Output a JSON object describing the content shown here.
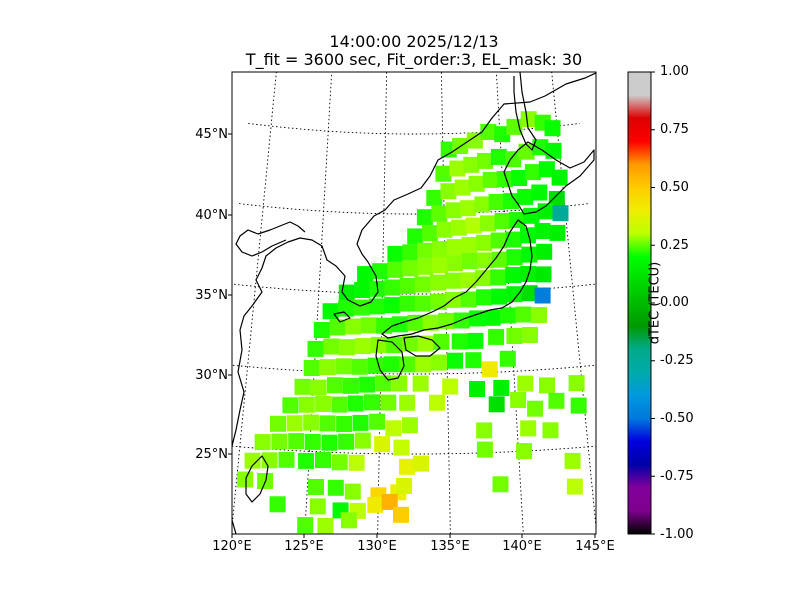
{
  "title_line1": "14:00:00 2025/12/13",
  "title_line2": "T_fit = 3600 sec, Fit_order:3, EL_mask: 30",
  "colorbar": {
    "label": "dTEC (TECU)",
    "ticks": [
      "-1.00",
      "-0.75",
      "-0.50",
      "-0.25",
      "0.00",
      "0.25",
      "0.50",
      "0.75",
      "1.00"
    ],
    "range": [
      -1.0,
      1.0
    ],
    "colormap": "nipy_spectral"
  },
  "chart_data": {
    "type": "heatmap",
    "title": "14:00:00 2025/12/13 / T_fit = 3600 sec, Fit_order:3, EL_mask: 30",
    "x_ticks": [
      "120°E",
      "125°E",
      "130°E",
      "135°E",
      "140°E",
      "145°E"
    ],
    "y_ticks": [
      "25°N",
      "30°N",
      "35°N",
      "40°N",
      "45°N"
    ],
    "xlim": [
      120,
      145
    ],
    "ylim": [
      20,
      49
    ],
    "projection": "conic",
    "grid": true,
    "value_label": "dTEC (TECU)",
    "value_range": [
      -1.0,
      1.0
    ],
    "points": [
      [
        135.5,
        44.0,
        0.12
      ],
      [
        136.5,
        44.2,
        0.18
      ],
      [
        137.8,
        44.5,
        0.2
      ],
      [
        139.0,
        45.0,
        0.15
      ],
      [
        140.2,
        44.8,
        0.1
      ],
      [
        141.3,
        45.2,
        0.16
      ],
      [
        142.6,
        45.6,
        0.2
      ],
      [
        143.8,
        45.3,
        0.12
      ],
      [
        144.6,
        44.9,
        0.08
      ],
      [
        135.0,
        42.5,
        0.15
      ],
      [
        136.2,
        42.8,
        0.22
      ],
      [
        137.4,
        43.0,
        0.2
      ],
      [
        138.6,
        43.2,
        0.18
      ],
      [
        139.8,
        43.4,
        0.1
      ],
      [
        141.0,
        43.2,
        0.14
      ],
      [
        142.2,
        43.6,
        0.17
      ],
      [
        143.4,
        43.8,
        0.1
      ],
      [
        144.5,
        43.5,
        0.05
      ],
      [
        134.2,
        41.0,
        0.12
      ],
      [
        135.4,
        41.4,
        0.2
      ],
      [
        136.6,
        41.6,
        0.22
      ],
      [
        137.8,
        41.8,
        0.2
      ],
      [
        139.0,
        42.0,
        0.16
      ],
      [
        140.2,
        42.0,
        0.12
      ],
      [
        141.4,
        42.0,
        0.08
      ],
      [
        142.6,
        42.3,
        0.12
      ],
      [
        143.8,
        42.4,
        0.06
      ],
      [
        144.8,
        41.8,
        0.02
      ],
      [
        133.4,
        39.8,
        0.1
      ],
      [
        134.6,
        40.0,
        0.16
      ],
      [
        135.8,
        40.2,
        0.2
      ],
      [
        137.0,
        40.3,
        0.22
      ],
      [
        138.2,
        40.5,
        0.2
      ],
      [
        139.4,
        40.6,
        0.14
      ],
      [
        140.6,
        40.6,
        0.1
      ],
      [
        141.8,
        40.8,
        0.08
      ],
      [
        143.0,
        41.0,
        0.05
      ],
      [
        144.4,
        40.5,
        -0.05
      ],
      [
        132.6,
        38.6,
        0.1
      ],
      [
        133.8,
        38.8,
        0.15
      ],
      [
        135.0,
        39.0,
        0.2
      ],
      [
        136.2,
        39.1,
        0.22
      ],
      [
        137.4,
        39.2,
        0.24
      ],
      [
        138.6,
        39.3,
        0.2
      ],
      [
        139.8,
        39.4,
        0.15
      ],
      [
        141.0,
        39.4,
        0.1
      ],
      [
        142.2,
        39.6,
        0.05
      ],
      [
        143.4,
        39.8,
        0.0
      ],
      [
        144.6,
        39.6,
        -0.35
      ],
      [
        131.0,
        37.5,
        0.08
      ],
      [
        132.2,
        37.6,
        0.12
      ],
      [
        133.4,
        37.7,
        0.18
      ],
      [
        134.6,
        37.8,
        0.2
      ],
      [
        135.8,
        37.9,
        0.22
      ],
      [
        137.0,
        38.0,
        0.22
      ],
      [
        138.2,
        38.1,
        0.2
      ],
      [
        139.4,
        38.2,
        0.15
      ],
      [
        140.6,
        38.2,
        0.1
      ],
      [
        141.8,
        38.4,
        0.05
      ],
      [
        143.0,
        38.6,
        0.02
      ],
      [
        144.2,
        38.4,
        0.0
      ],
      [
        128.6,
        36.2,
        0.05
      ],
      [
        129.8,
        36.4,
        0.1
      ],
      [
        131.0,
        36.5,
        0.15
      ],
      [
        132.2,
        36.6,
        0.18
      ],
      [
        133.4,
        36.7,
        0.2
      ],
      [
        134.6,
        36.8,
        0.22
      ],
      [
        135.8,
        36.9,
        0.2
      ],
      [
        137.0,
        37.0,
        0.18
      ],
      [
        138.2,
        37.0,
        0.2
      ],
      [
        139.4,
        37.0,
        0.16
      ],
      [
        140.6,
        37.1,
        0.1
      ],
      [
        141.8,
        37.2,
        0.04
      ],
      [
        143.0,
        37.3,
        0.0
      ],
      [
        127.2,
        35.0,
        0.0
      ],
      [
        128.4,
        35.2,
        0.05
      ],
      [
        129.6,
        35.3,
        0.1
      ],
      [
        130.8,
        35.4,
        0.12
      ],
      [
        132.0,
        35.5,
        0.15
      ],
      [
        133.2,
        35.6,
        0.18
      ],
      [
        134.4,
        35.7,
        0.2
      ],
      [
        135.6,
        35.8,
        0.2
      ],
      [
        136.8,
        35.8,
        0.22
      ],
      [
        138.0,
        35.9,
        0.2
      ],
      [
        139.2,
        35.9,
        0.12
      ],
      [
        140.4,
        36.0,
        0.05
      ],
      [
        141.6,
        36.0,
        0.0
      ],
      [
        142.8,
        35.9,
        -0.02
      ],
      [
        126.0,
        33.8,
        0.05
      ],
      [
        127.2,
        34.0,
        0.1
      ],
      [
        128.4,
        34.1,
        0.12
      ],
      [
        129.6,
        34.2,
        0.1
      ],
      [
        130.8,
        34.3,
        0.08
      ],
      [
        132.0,
        34.4,
        0.12
      ],
      [
        133.2,
        34.4,
        0.15
      ],
      [
        134.4,
        34.5,
        0.18
      ],
      [
        135.6,
        34.6,
        0.2
      ],
      [
        136.8,
        34.6,
        0.15
      ],
      [
        138.0,
        34.7,
        0.1
      ],
      [
        139.2,
        34.7,
        0.05
      ],
      [
        140.4,
        34.8,
        0.02
      ],
      [
        141.6,
        34.8,
        -0.05
      ],
      [
        142.6,
        34.6,
        -0.55
      ],
      [
        125.4,
        32.6,
        0.1
      ],
      [
        126.6,
        32.8,
        0.15
      ],
      [
        127.8,
        32.9,
        0.2
      ],
      [
        129.0,
        33.0,
        0.18
      ],
      [
        130.2,
        33.0,
        0.12
      ],
      [
        131.4,
        33.1,
        0.1
      ],
      [
        132.6,
        33.2,
        0.15
      ],
      [
        133.8,
        33.2,
        0.2
      ],
      [
        135.0,
        33.3,
        0.18
      ],
      [
        136.2,
        33.3,
        0.12
      ],
      [
        137.4,
        33.4,
        0.08
      ],
      [
        138.6,
        33.4,
        0.05
      ],
      [
        139.8,
        33.5,
        0.1
      ],
      [
        141.0,
        33.5,
        0.15
      ],
      [
        142.2,
        33.4,
        0.2
      ],
      [
        125.0,
        31.4,
        0.12
      ],
      [
        126.2,
        31.6,
        0.18
      ],
      [
        127.4,
        31.6,
        0.2
      ],
      [
        128.6,
        31.7,
        0.22
      ],
      [
        129.8,
        31.8,
        0.2
      ],
      [
        131.0,
        31.8,
        0.15
      ],
      [
        132.2,
        31.9,
        0.18
      ],
      [
        133.4,
        31.9,
        0.22
      ],
      [
        134.6,
        32.0,
        0.15
      ],
      [
        136.0,
        32.0,
        0.1
      ],
      [
        137.2,
        32.0,
        0.08
      ],
      [
        138.8,
        32.2,
        0.12
      ],
      [
        140.2,
        32.2,
        0.18
      ],
      [
        141.4,
        32.2,
        0.2
      ],
      [
        124.8,
        30.2,
        0.15
      ],
      [
        126.0,
        30.3,
        0.2
      ],
      [
        127.2,
        30.4,
        0.18
      ],
      [
        128.4,
        30.4,
        0.15
      ],
      [
        129.6,
        30.5,
        0.12
      ],
      [
        130.8,
        30.6,
        0.1
      ],
      [
        132.0,
        30.6,
        0.15
      ],
      [
        133.2,
        30.6,
        0.22
      ],
      [
        134.4,
        30.7,
        0.2
      ],
      [
        135.6,
        30.8,
        0.08
      ],
      [
        137.0,
        30.8,
        0.1
      ],
      [
        138.2,
        30.2,
        0.45
      ],
      [
        139.6,
        30.8,
        0.12
      ],
      [
        124.2,
        29.0,
        0.18
      ],
      [
        125.4,
        29.0,
        0.2
      ],
      [
        126.6,
        29.2,
        0.15
      ],
      [
        127.8,
        29.2,
        0.12
      ],
      [
        129.0,
        29.3,
        0.1
      ],
      [
        130.2,
        29.4,
        0.15
      ],
      [
        131.4,
        29.4,
        0.2
      ],
      [
        133.0,
        29.4,
        0.22
      ],
      [
        135.2,
        29.2,
        0.25
      ],
      [
        137.2,
        29.0,
        0.0
      ],
      [
        139.0,
        29.0,
        0.0
      ],
      [
        140.8,
        29.2,
        0.22
      ],
      [
        142.4,
        29.0,
        0.2
      ],
      [
        144.6,
        29.0,
        0.2
      ],
      [
        123.4,
        27.8,
        0.15
      ],
      [
        124.6,
        27.9,
        0.2
      ],
      [
        125.8,
        28.0,
        0.2
      ],
      [
        127.0,
        28.0,
        0.15
      ],
      [
        128.2,
        28.1,
        0.1
      ],
      [
        129.4,
        28.2,
        0.12
      ],
      [
        130.6,
        28.2,
        0.18
      ],
      [
        132.0,
        28.2,
        0.22
      ],
      [
        134.2,
        28.2,
        0.25
      ],
      [
        138.6,
        28.0,
        -0.05
      ],
      [
        140.2,
        28.2,
        0.2
      ],
      [
        141.4,
        27.6,
        0.18
      ],
      [
        143.0,
        28.0,
        0.15
      ],
      [
        144.6,
        27.6,
        0.12
      ],
      [
        122.6,
        26.6,
        0.18
      ],
      [
        123.8,
        26.7,
        0.22
      ],
      [
        125.0,
        26.8,
        0.2
      ],
      [
        126.2,
        26.8,
        0.15
      ],
      [
        127.4,
        26.8,
        0.12
      ],
      [
        128.6,
        26.9,
        0.1
      ],
      [
        129.8,
        27.0,
        0.15
      ],
      [
        131.0,
        26.6,
        0.25
      ],
      [
        132.2,
        26.8,
        0.22
      ],
      [
        137.6,
        26.4,
        0.2
      ],
      [
        140.8,
        26.4,
        0.22
      ],
      [
        142.4,
        26.2,
        0.2
      ],
      [
        121.6,
        25.4,
        0.2
      ],
      [
        122.8,
        25.5,
        0.18
      ],
      [
        124.0,
        25.6,
        0.15
      ],
      [
        125.2,
        25.6,
        0.12
      ],
      [
        126.4,
        25.6,
        0.1
      ],
      [
        127.6,
        25.7,
        0.12
      ],
      [
        128.8,
        25.8,
        0.2
      ],
      [
        130.2,
        25.6,
        0.35
      ],
      [
        131.6,
        25.4,
        0.28
      ],
      [
        137.6,
        25.2,
        0.18
      ],
      [
        140.4,
        25.0,
        0.2
      ],
      [
        121.0,
        24.2,
        0.22
      ],
      [
        122.2,
        24.3,
        0.2
      ],
      [
        123.4,
        24.4,
        0.15
      ],
      [
        124.8,
        24.4,
        0.1
      ],
      [
        126.0,
        24.5,
        0.12
      ],
      [
        127.2,
        24.4,
        0.18
      ],
      [
        128.4,
        24.4,
        0.25
      ],
      [
        132.0,
        24.2,
        0.4
      ],
      [
        133.0,
        24.4,
        0.35
      ],
      [
        143.8,
        24.2,
        0.22
      ],
      [
        120.6,
        23.0,
        0.2
      ],
      [
        122.0,
        23.0,
        0.18
      ],
      [
        125.6,
        22.8,
        0.15
      ],
      [
        127.0,
        22.8,
        0.12
      ],
      [
        128.2,
        22.6,
        0.2
      ],
      [
        130.0,
        22.4,
        0.55
      ],
      [
        131.4,
        22.6,
        0.42
      ],
      [
        131.8,
        23.0,
        0.35
      ],
      [
        138.6,
        23.0,
        0.18
      ],
      [
        143.8,
        22.6,
        0.25
      ],
      [
        123.0,
        21.6,
        0.12
      ],
      [
        125.8,
        21.6,
        0.2
      ],
      [
        127.4,
        21.4,
        0.05
      ],
      [
        128.6,
        21.4,
        0.25
      ],
      [
        129.8,
        21.8,
        0.45
      ],
      [
        130.8,
        22.0,
        0.7
      ],
      [
        131.6,
        21.2,
        0.6
      ],
      [
        126.4,
        20.4,
        0.22
      ],
      [
        128.0,
        20.8,
        0.2
      ],
      [
        125.0,
        20.4,
        0.15
      ]
    ]
  }
}
